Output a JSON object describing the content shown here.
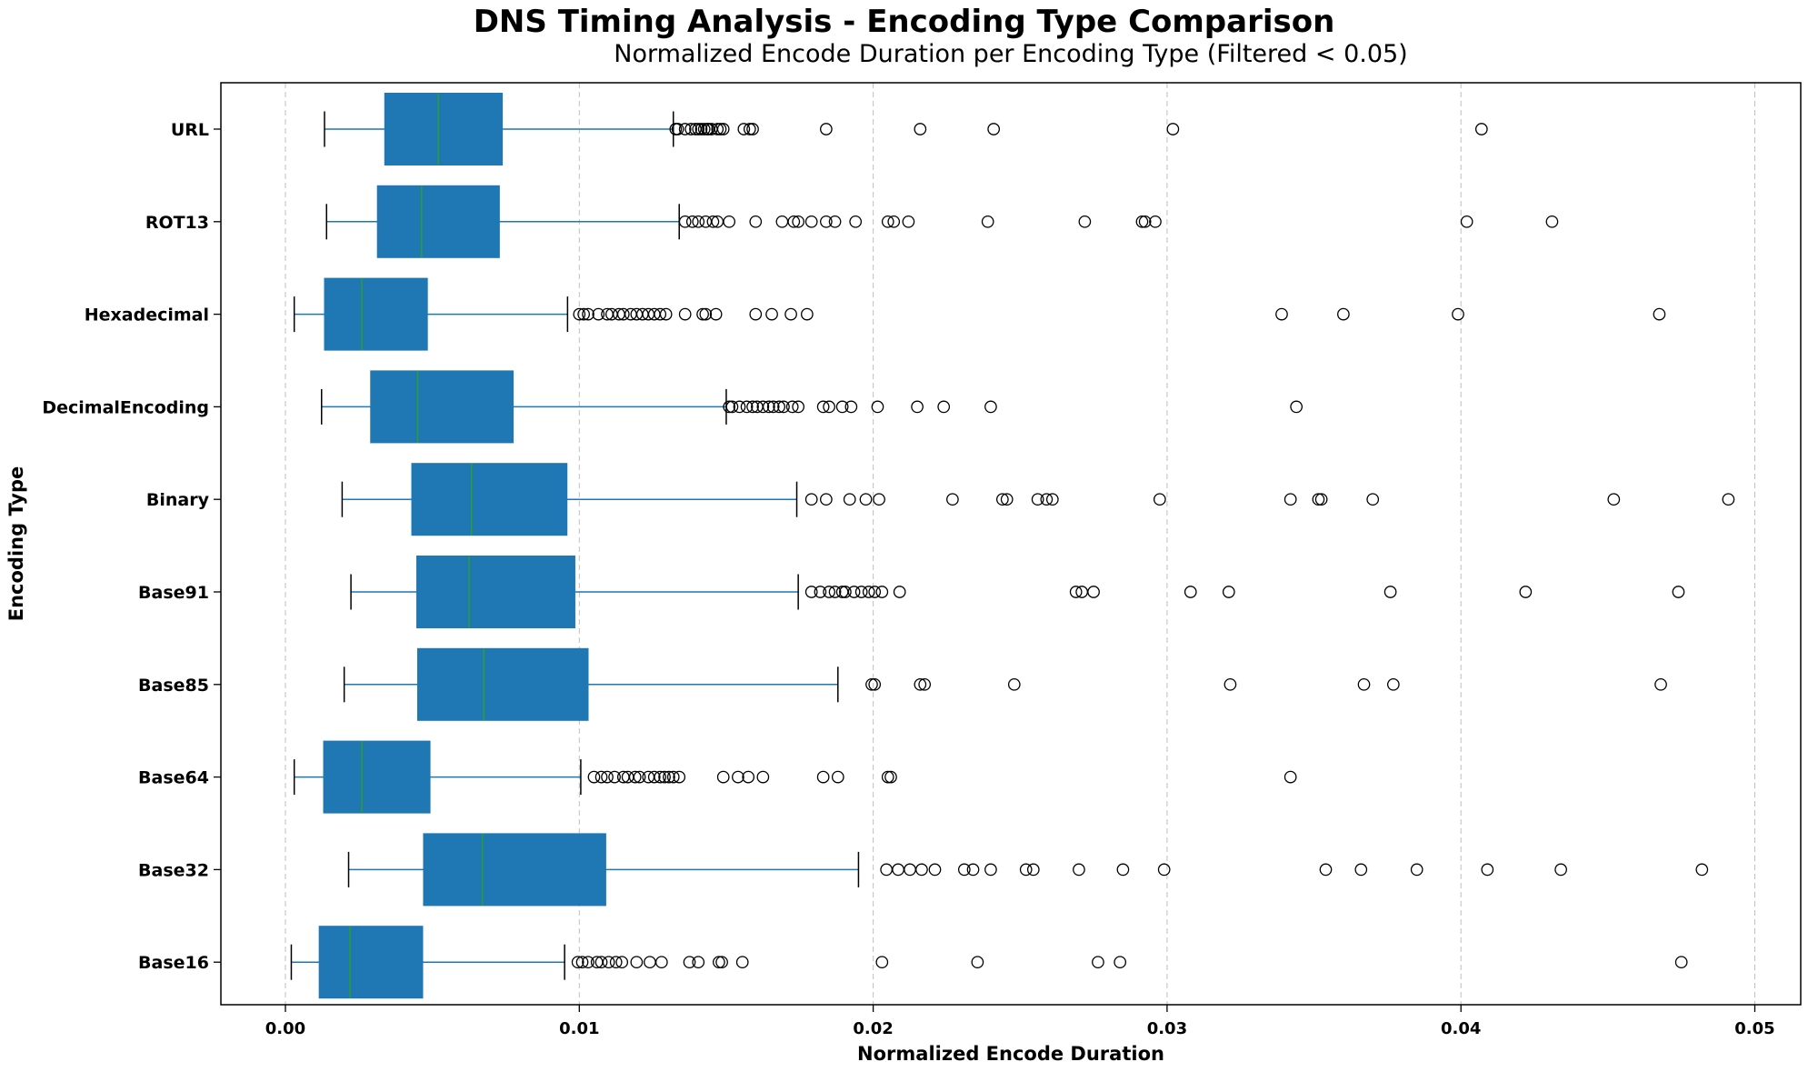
{
  "suptitle": "DNS Timing Analysis - Encoding Type Comparison",
  "chart_data": {
    "type": "boxplot",
    "orientation": "horizontal",
    "title": "Normalized Encode Duration per Encoding Type (Filtered < 0.05)",
    "xlabel": "Normalized Encode Duration",
    "ylabel": "Encoding Type",
    "xlim": [
      -0.0023,
      0.0515
    ],
    "xticks": [
      0.0,
      0.01,
      0.02,
      0.03,
      0.04,
      0.05
    ],
    "xtick_labels": [
      "0.00",
      "0.01",
      "0.02",
      "0.03",
      "0.04",
      "0.05"
    ],
    "grid": "x-dashed",
    "colors": {
      "box": "#1f77b4",
      "median": "#2ca02c",
      "whisker": "#1f77b4",
      "cap": "#000000",
      "grid": "#b0b0b0"
    },
    "categories": [
      "URL",
      "ROT13",
      "Hexadecimal",
      "DecimalEncoding",
      "Binary",
      "Base91",
      "Base85",
      "Base64",
      "Base32",
      "Base16"
    ],
    "boxes": [
      {
        "name": "URL",
        "whislo": 0.00133,
        "q1": 0.00338,
        "med": 0.0052,
        "q3": 0.00738,
        "whishi": 0.0132,
        "fliers": [
          0.01328,
          0.01335,
          0.0136,
          0.0138,
          0.01395,
          0.01405,
          0.01415,
          0.01425,
          0.01435,
          0.0144,
          0.0145,
          0.0147,
          0.0148,
          0.0149,
          0.0156,
          0.0158,
          0.0159,
          0.0184,
          0.0216,
          0.0241,
          0.0302,
          0.0407
        ]
      },
      {
        "name": "ROT13",
        "whislo": 0.0014,
        "q1": 0.00313,
        "med": 0.00463,
        "q3": 0.00728,
        "whishi": 0.0134,
        "fliers": [
          0.0136,
          0.01385,
          0.01405,
          0.0143,
          0.01455,
          0.0147,
          0.0151,
          0.016,
          0.0169,
          0.0173,
          0.01745,
          0.0179,
          0.0184,
          0.0187,
          0.0194,
          0.0205,
          0.0207,
          0.0212,
          0.0239,
          0.0272,
          0.02915,
          0.02925,
          0.0296,
          0.0402,
          0.0431
        ]
      },
      {
        "name": "Hexadecimal",
        "whislo": 0.0003,
        "q1": 0.00133,
        "med": 0.0026,
        "q3": 0.00483,
        "whishi": 0.0096,
        "fliers": [
          0.01,
          0.01015,
          0.0103,
          0.01065,
          0.01095,
          0.0111,
          0.01135,
          0.0115,
          0.01175,
          0.01195,
          0.01215,
          0.01235,
          0.01255,
          0.01275,
          0.01295,
          0.0136,
          0.0142,
          0.0143,
          0.01465,
          0.016,
          0.01655,
          0.0172,
          0.01775,
          0.0339,
          0.036,
          0.0399,
          0.04675
        ]
      },
      {
        "name": "DecimalEncoding",
        "whislo": 0.00123,
        "q1": 0.0029,
        "med": 0.0045,
        "q3": 0.00775,
        "whishi": 0.015,
        "fliers": [
          0.0151,
          0.0152,
          0.01545,
          0.0157,
          0.0159,
          0.01605,
          0.01625,
          0.01645,
          0.0166,
          0.0168,
          0.01695,
          0.01725,
          0.01745,
          0.0183,
          0.0185,
          0.01895,
          0.01925,
          0.02015,
          0.0215,
          0.0224,
          0.024,
          0.0344
        ]
      },
      {
        "name": "Binary",
        "whislo": 0.00193,
        "q1": 0.0043,
        "med": 0.00633,
        "q3": 0.00958,
        "whishi": 0.0174,
        "fliers": [
          0.0179,
          0.0184,
          0.0192,
          0.01975,
          0.0202,
          0.0227,
          0.0244,
          0.02455,
          0.0256,
          0.0259,
          0.0261,
          0.02975,
          0.0342,
          0.03515,
          0.03525,
          0.037,
          0.0452,
          0.0491
        ]
      },
      {
        "name": "Base91",
        "whislo": 0.00223,
        "q1": 0.00447,
        "med": 0.00625,
        "q3": 0.00985,
        "whishi": 0.01745,
        "fliers": [
          0.0179,
          0.0182,
          0.0185,
          0.0187,
          0.01895,
          0.01905,
          0.01935,
          0.0196,
          0.01985,
          0.02005,
          0.0203,
          0.0209,
          0.0269,
          0.0271,
          0.0275,
          0.0308,
          0.0321,
          0.0376,
          0.0422,
          0.0474
        ]
      },
      {
        "name": "Base85",
        "whislo": 0.002,
        "q1": 0.0045,
        "med": 0.00675,
        "q3": 0.0103,
        "whishi": 0.0188,
        "fliers": [
          0.01995,
          0.02005,
          0.0216,
          0.02175,
          0.0248,
          0.03215,
          0.0367,
          0.0377,
          0.0468
        ]
      },
      {
        "name": "Base64",
        "whislo": 0.0003,
        "q1": 0.0013,
        "med": 0.0026,
        "q3": 0.00492,
        "whishi": 0.01005,
        "fliers": [
          0.0105,
          0.01075,
          0.01095,
          0.0112,
          0.0115,
          0.01165,
          0.0119,
          0.01205,
          0.01235,
          0.01255,
          0.01275,
          0.0129,
          0.01305,
          0.0132,
          0.0134,
          0.0149,
          0.0154,
          0.01575,
          0.01625,
          0.0183,
          0.0188,
          0.0205,
          0.0206,
          0.0342
        ]
      },
      {
        "name": "Base32",
        "whislo": 0.00215,
        "q1": 0.0047,
        "med": 0.0067,
        "q3": 0.0109,
        "whishi": 0.0195,
        "fliers": [
          0.02045,
          0.02085,
          0.02125,
          0.02165,
          0.0221,
          0.0231,
          0.0234,
          0.024,
          0.0252,
          0.02545,
          0.027,
          0.0285,
          0.0299,
          0.0354,
          0.0366,
          0.0385,
          0.0409,
          0.0434,
          0.0482
        ]
      },
      {
        "name": "Base16",
        "whislo": 0.0002,
        "q1": 0.00115,
        "med": 0.0022,
        "q3": 0.00467,
        "whishi": 0.0095,
        "fliers": [
          0.00995,
          0.0101,
          0.0103,
          0.0106,
          0.01075,
          0.011,
          0.01125,
          0.01145,
          0.01195,
          0.0124,
          0.0128,
          0.01375,
          0.01405,
          0.01475,
          0.01485,
          0.01555,
          0.0203,
          0.02355,
          0.02765,
          0.0284,
          0.0475
        ]
      }
    ]
  }
}
